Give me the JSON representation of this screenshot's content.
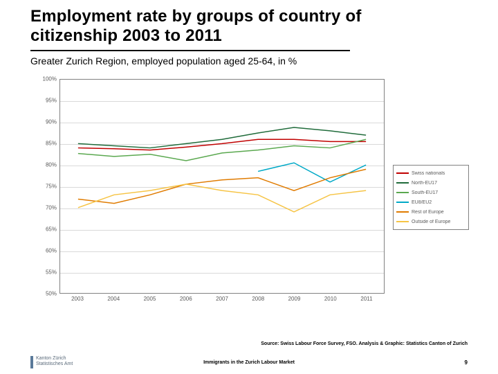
{
  "title": "Employment rate by groups of country of citizenship 2003 to 2011",
  "subtitle": "Greater Zurich Region, employed population aged 25-64, in %",
  "source": "Source: Swiss Labour Force Survey, FSO. Analysis & Graphic: Statistics Canton of Zurich",
  "footer_center": "Immigrants in the Zurich Labour Market",
  "footer_page": "9",
  "footer_logo_line1": "Kanton Zürich",
  "footer_logo_line2": "Statistisches Amt",
  "chart": {
    "type": "line",
    "background_color": "#ffffff",
    "grid_color": "#d9d9d9",
    "border_color": "#808080",
    "x_categories": [
      "2003",
      "2004",
      "2005",
      "2006",
      "2007",
      "2008",
      "2009",
      "2010",
      "2011"
    ],
    "x_fontsize": 8,
    "ylim": [
      50,
      100
    ],
    "ytick_step": 5,
    "y_suffix": "%",
    "y_fontsize": 8,
    "line_width": 1.5,
    "series": [
      {
        "name": "Swiss nationals",
        "color": "#c00000",
        "values": [
          84.0,
          83.8,
          83.5,
          84.2,
          85.0,
          86.0,
          86.0,
          85.5,
          85.5
        ]
      },
      {
        "name": "North-EU17",
        "color": "#1f6b3a",
        "values": [
          85.0,
          84.5,
          84.0,
          85.0,
          86.0,
          87.5,
          88.8,
          88.0,
          87.0
        ]
      },
      {
        "name": "South-EU17",
        "color": "#5aa84f",
        "values": [
          82.7,
          82.0,
          82.5,
          81.0,
          82.8,
          83.5,
          84.5,
          84.0,
          86.0
        ]
      },
      {
        "name": "EU8/EU2",
        "color": "#00a9c7",
        "values": [
          null,
          null,
          null,
          null,
          null,
          78.5,
          80.5,
          76.0,
          80.0
        ]
      },
      {
        "name": "Rest of Europe",
        "color": "#e07b00",
        "values": [
          72.0,
          71.0,
          73.0,
          75.5,
          76.5,
          77.0,
          74.0,
          77.0,
          79.0
        ]
      },
      {
        "name": "Outside of Europe",
        "color": "#f6c445",
        "values": [
          70.0,
          73.0,
          74.0,
          75.5,
          74.0,
          73.0,
          69.0,
          73.0,
          74.0
        ]
      }
    ],
    "legend": {
      "position": "right-middle",
      "fontsize": 7,
      "border_color": "#808080"
    }
  }
}
